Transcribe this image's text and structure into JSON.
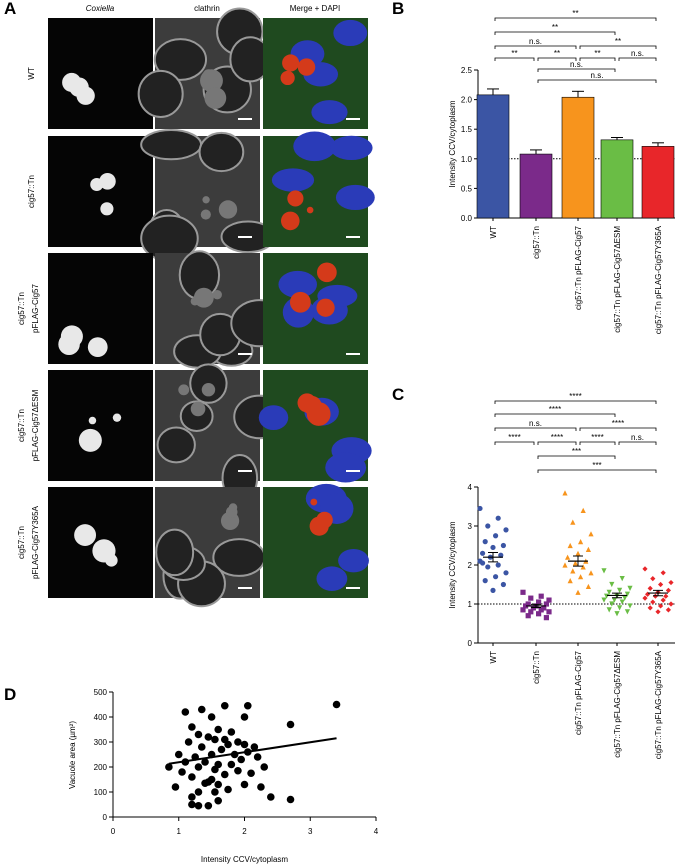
{
  "panel_a": {
    "panel_label": "A",
    "columns": [
      "Coxiella",
      "clathrin",
      "Merge + DAPI"
    ],
    "rows": [
      [
        "WT"
      ],
      [
        "cig57::Tn"
      ],
      [
        "cig57::Tn",
        "pFLAG-Cig57"
      ],
      [
        "cig57::Tn",
        "pFLAG-Cig57ΔESM"
      ],
      [
        "cig57::Tn",
        "pFLAG-Cig57Y365A"
      ]
    ]
  },
  "chart_data": [
    {
      "type": "bar",
      "panel_label": "B",
      "y_label": "Intensity CCV/cytoplasm",
      "categories": [
        "WT",
        "cig57::Tn",
        "cig57::Tn pFLAG-Cig57",
        "cig57::Tn pFLAG-Cig57ΔESM",
        "cig57::Tn pFLAG-Cig57Y365A"
      ],
      "values": [
        2.08,
        1.08,
        2.04,
        1.32,
        1.21
      ],
      "errors": [
        0.1,
        0.07,
        0.1,
        0.04,
        0.06
      ],
      "colors": [
        "#3b55a4",
        "#7b2a8a",
        "#f7941d",
        "#6abd45",
        "#e8262a"
      ],
      "ylim": [
        0,
        2.5
      ],
      "yticks": [
        {
          "value": 0,
          "label": "0.0"
        },
        0.5,
        {
          "value": 1,
          "label": "1.0"
        },
        1.5,
        {
          "value": 2,
          "label": "2.0"
        },
        2.5
      ],
      "refline": 1,
      "significance": [
        "**",
        "**",
        "n.s.",
        "**",
        "**",
        "**",
        "**",
        "n.s.",
        "n.s.",
        "n.s."
      ]
    },
    {
      "type": "strip",
      "panel_label": "C",
      "y_label": "Intensity CCV/cytoplasm",
      "categories": [
        "WT",
        "cig57::Tn",
        "cig57::Tn pFLAG-Cig57",
        "cig57::Tn pFLAG-Cig57ΔESM",
        "cig57::Tn pFLAG-Cig57Y365A"
      ],
      "groups": [
        {
          "color": "#3b55a4",
          "marker": "circle",
          "mean": 2.2,
          "sem": 0.12,
          "values": [
            3.45,
            3.2,
            3.0,
            2.9,
            2.75,
            2.6,
            2.5,
            2.45,
            2.3,
            2.25,
            2.2,
            2.1,
            2.0,
            1.95,
            1.8,
            1.7,
            1.6,
            1.5,
            1.35,
            2.05
          ]
        },
        {
          "color": "#7b2a8a",
          "marker": "square",
          "mean": 0.95,
          "sem": 0.04,
          "values": [
            1.3,
            1.2,
            1.15,
            1.1,
            1.05,
            1.0,
            1.0,
            0.95,
            0.95,
            0.9,
            0.9,
            0.85,
            0.85,
            0.8,
            0.8,
            0.75,
            0.7,
            0.65
          ]
        },
        {
          "color": "#f7941d",
          "marker": "triangle-up",
          "mean": 2.1,
          "sem": 0.13,
          "values": [
            3.85,
            3.4,
            3.1,
            2.8,
            2.6,
            2.5,
            2.4,
            2.3,
            2.2,
            2.1,
            2.05,
            2.0,
            1.95,
            1.85,
            1.8,
            1.7,
            1.6,
            1.45,
            1.3
          ]
        },
        {
          "color": "#6abd45",
          "marker": "triangle-down",
          "mean": 1.22,
          "sem": 0.06,
          "values": [
            1.85,
            1.65,
            1.5,
            1.4,
            1.35,
            1.3,
            1.25,
            1.2,
            1.2,
            1.15,
            1.1,
            1.1,
            1.05,
            1.0,
            0.95,
            0.9,
            0.85,
            0.8,
            0.75
          ]
        },
        {
          "color": "#e8262a",
          "marker": "diamond",
          "mean": 1.28,
          "sem": 0.07,
          "values": [
            1.9,
            1.8,
            1.65,
            1.55,
            1.5,
            1.4,
            1.35,
            1.3,
            1.25,
            1.2,
            1.2,
            1.15,
            1.1,
            1.05,
            1.0,
            0.95,
            0.9,
            0.85,
            0.8
          ]
        }
      ],
      "ylim": [
        0,
        4
      ],
      "yticks": [
        0,
        1,
        2,
        3,
        4
      ],
      "refline": 1,
      "significance": [
        "****",
        "****",
        "n.s.",
        "****",
        "****",
        "****",
        "****",
        "n.s.",
        "***",
        "***"
      ]
    },
    {
      "type": "scatter",
      "panel_label": "D",
      "x_label": "Intensity CCV/cytoplasm",
      "y_label": "Vacuole area (µm²)",
      "color": "#000000",
      "x": [
        3.4,
        1.1,
        1.35,
        1.7,
        2.05,
        2.7,
        2.0,
        1.5,
        1.2,
        1.6,
        1.8,
        1.3,
        1.45,
        1.55,
        1.7,
        1.9,
        1.75,
        2.0,
        1.15,
        1.35,
        1.65,
        2.15,
        1.0,
        1.25,
        1.5,
        1.85,
        2.05,
        1.95,
        2.2,
        1.1,
        1.4,
        1.6,
        1.8,
        2.3,
        0.85,
        1.3,
        1.55,
        1.9,
        1.05,
        1.7,
        2.1,
        1.2,
        1.5,
        1.45,
        1.6,
        1.4,
        2.0,
        2.25,
        0.95,
        1.75,
        1.3,
        1.55,
        1.2,
        1.6,
        2.4,
        2.7,
        1.2,
        1.45,
        1.3
      ],
      "values": [
        450,
        420,
        430,
        445,
        445,
        370,
        400,
        400,
        360,
        350,
        340,
        330,
        320,
        310,
        310,
        300,
        290,
        290,
        300,
        280,
        270,
        280,
        250,
        240,
        250,
        250,
        260,
        230,
        240,
        220,
        220,
        210,
        210,
        200,
        200,
        200,
        190,
        185,
        180,
        170,
        175,
        160,
        150,
        140,
        130,
        135,
        130,
        120,
        120,
        110,
        100,
        100,
        80,
        65,
        80,
        70,
        50,
        45,
        45
      ],
      "fit_line": {
        "x": [
          0.85,
          3.4
        ],
        "y": [
          213,
          315
        ]
      },
      "xlim": [
        0,
        4
      ],
      "xticks": [
        0,
        1,
        2,
        3,
        4
      ],
      "ylim": [
        0,
        500
      ],
      "yticks": [
        0,
        100,
        200,
        300,
        400,
        500
      ]
    }
  ]
}
